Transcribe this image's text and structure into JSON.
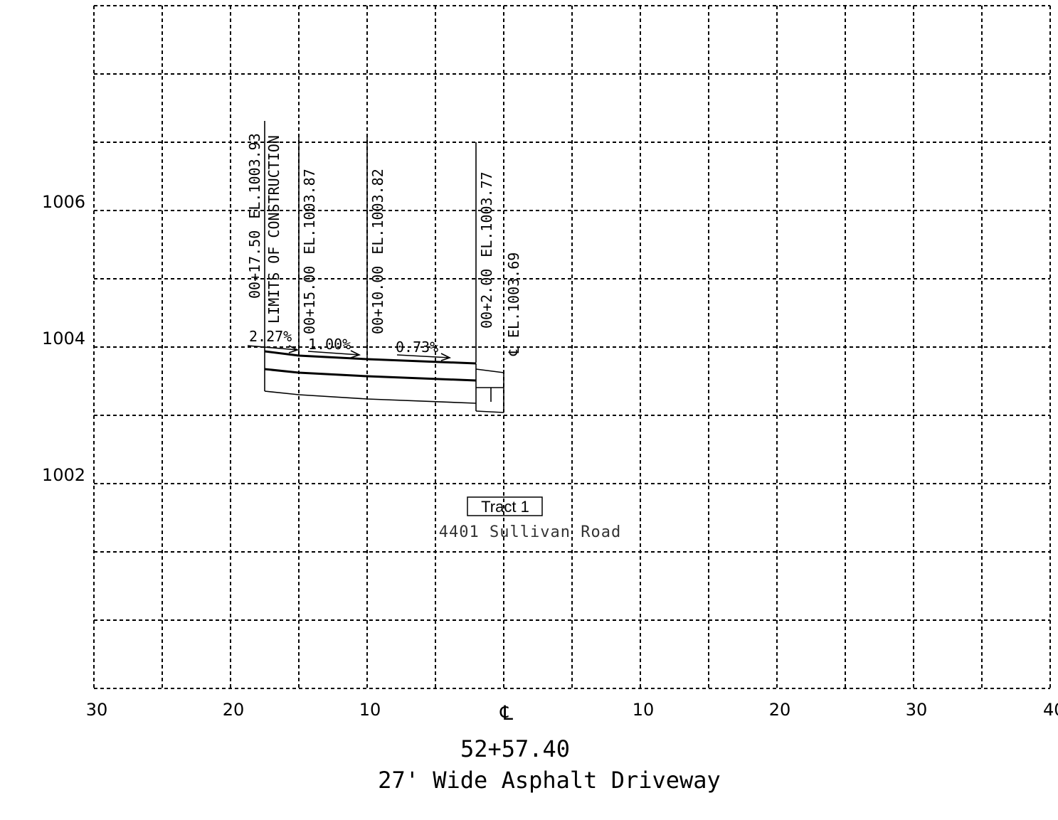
{
  "y_axis": {
    "labels": [
      {
        "text": "1006",
        "value": 1006
      },
      {
        "text": "1004",
        "value": 1004
      },
      {
        "text": "1002",
        "value": 1002
      }
    ]
  },
  "x_axis": {
    "labels": [
      {
        "text": "30",
        "offset": -30
      },
      {
        "text": "20",
        "offset": -20
      },
      {
        "text": "10",
        "offset": -10
      },
      {
        "text": "10",
        "offset": 10
      },
      {
        "text": "20",
        "offset": 20
      },
      {
        "text": "30",
        "offset": 30
      },
      {
        "text": "40",
        "offset": 40
      }
    ],
    "centerline_symbol": "℄"
  },
  "stations": [
    {
      "offset": -17.5,
      "label": "00+17.50",
      "elevation_label": "EL.1003.93",
      "note": "LIMITS OF CONSTRUCTION"
    },
    {
      "offset": -15.0,
      "label": "00+15.00",
      "elevation_label": "EL.1003.87"
    },
    {
      "offset": -10.0,
      "label": "00+10.00",
      "elevation_label": "EL.1003.82"
    },
    {
      "offset": -2.0,
      "label": "00+2.00",
      "elevation_label": "EL.1003.77"
    }
  ],
  "centerline_elevation": {
    "offset": 0,
    "label": "℄ EL.1003.69"
  },
  "slopes": [
    {
      "text": "2.27%"
    },
    {
      "text": "1.00%"
    },
    {
      "text": "0.73%"
    }
  ],
  "tract": {
    "label": "Tract 1",
    "address": "4401 Sullivan Road"
  },
  "section": {
    "station": "52+57.40",
    "description": "27' Wide Asphalt Driveway"
  }
}
